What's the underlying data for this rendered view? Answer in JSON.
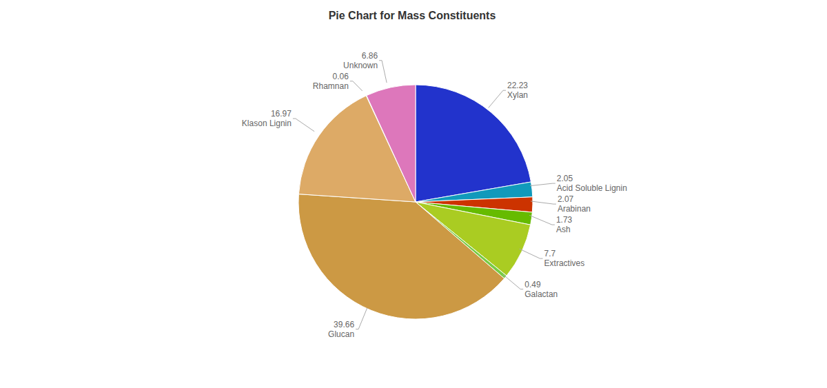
{
  "chart_data": {
    "type": "pie",
    "title": "Pie Chart for Mass Constituents",
    "categories": [
      "Xylan",
      "Acid Soluble Lignin",
      "Arabinan",
      "Ash",
      "Extractives",
      "Galactan",
      "Glucan",
      "Klason Lignin",
      "Rhamnan",
      "Unknown"
    ],
    "values": [
      22.23,
      2.05,
      2.07,
      1.73,
      7.7,
      0.49,
      39.66,
      16.97,
      0.06,
      6.86
    ],
    "colors": [
      "#2233cc",
      "#1199bb",
      "#cc3300",
      "#66bb00",
      "#aacc22",
      "#77cc44",
      "#cc9944",
      "#ddaa66",
      "#009966",
      "#dd77bb"
    ],
    "data_labels": true
  }
}
